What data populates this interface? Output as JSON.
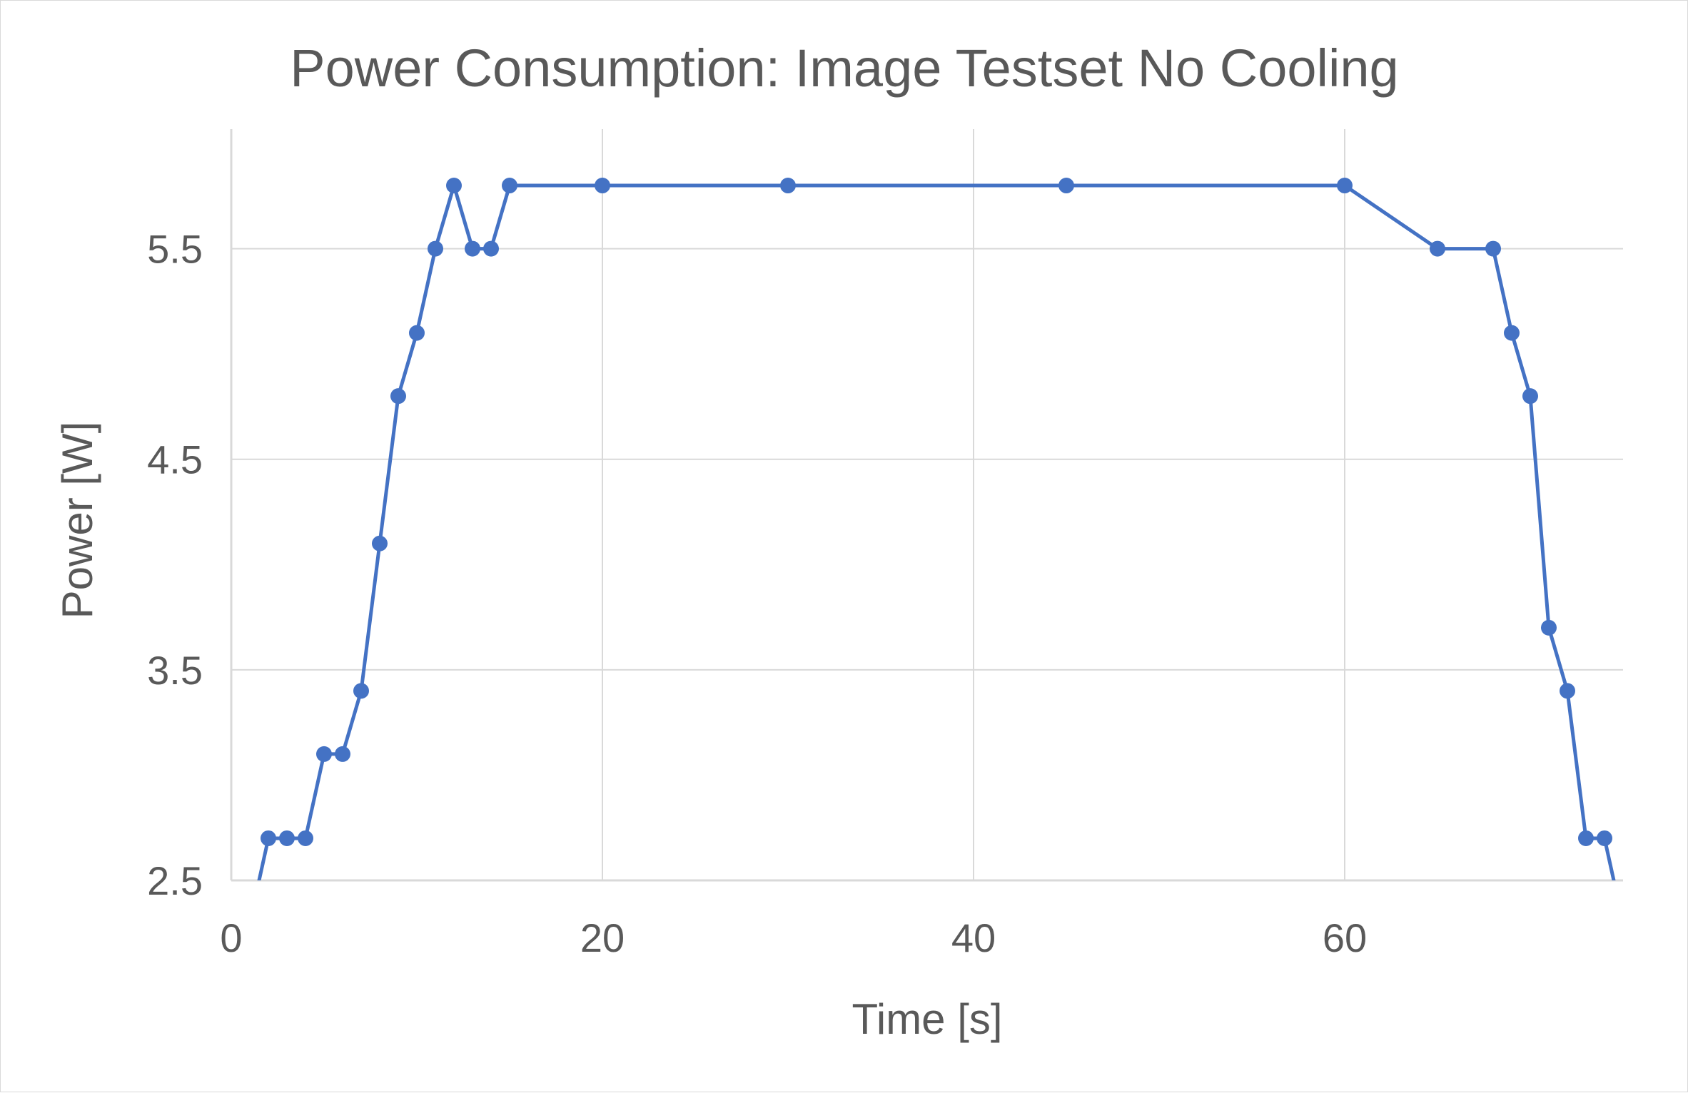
{
  "chart_data": {
    "type": "scatter",
    "title": "Power Consumption: Image Testset No Cooling",
    "xlabel": "Time [s]",
    "ylabel": "Power [W]",
    "xlim": [
      0,
      75
    ],
    "ylim": [
      2.5,
      6.0
    ],
    "x_ticks": [
      0,
      20,
      40,
      60
    ],
    "x_tick_labels": [
      "0",
      "20",
      "40",
      "60"
    ],
    "y_ticks": [
      2.5,
      3.5,
      4.5,
      5.5
    ],
    "y_tick_labels": [
      "2.5",
      "3.5",
      "4.5",
      "5.5"
    ],
    "grid": true,
    "legend": "none",
    "line_color": "#4472c4",
    "grid_color": "#d9d9d9",
    "series": [
      {
        "style": "line-with-markers",
        "points": [
          [
            1,
            2.3
          ],
          [
            2,
            2.7
          ],
          [
            3,
            2.7
          ],
          [
            4,
            2.7
          ],
          [
            5,
            3.1
          ],
          [
            6,
            3.1
          ],
          [
            7,
            3.4
          ],
          [
            8,
            4.1
          ],
          [
            9,
            4.8
          ],
          [
            10,
            5.1
          ],
          [
            11,
            5.5
          ],
          [
            12,
            5.8
          ],
          [
            13,
            5.5
          ],
          [
            14,
            5.5
          ],
          [
            15,
            5.8
          ],
          [
            20,
            5.8
          ],
          [
            30,
            5.8
          ],
          [
            45,
            5.8
          ],
          [
            60,
            5.8
          ],
          [
            65,
            5.5
          ],
          [
            68,
            5.5
          ],
          [
            69,
            5.1
          ],
          [
            70,
            4.8
          ],
          [
            71,
            3.7
          ],
          [
            72,
            3.4
          ],
          [
            73,
            2.7
          ],
          [
            74,
            2.7
          ],
          [
            75,
            2.3
          ]
        ]
      }
    ]
  }
}
